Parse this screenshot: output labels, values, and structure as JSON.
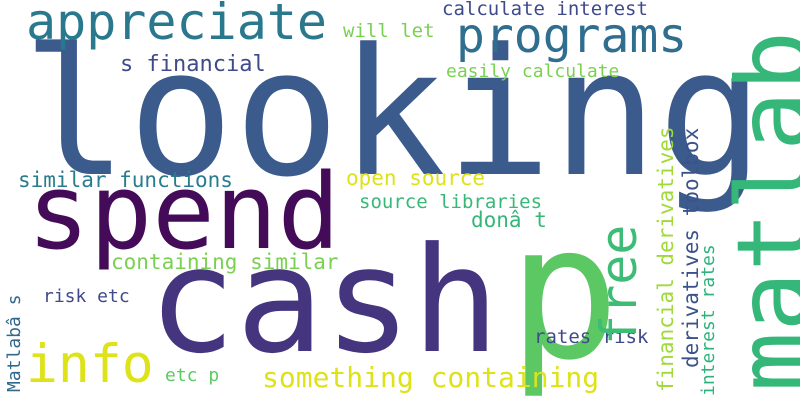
{
  "words": [
    {
      "text": "looking",
      "color": "#3b5b8c"
    },
    {
      "text": "cash",
      "color": "#45357f"
    },
    {
      "text": "p",
      "color": "#5cc863"
    },
    {
      "text": "spend",
      "color": "#440b58"
    },
    {
      "text": "matlab",
      "color": "#35b779"
    },
    {
      "text": "appreciate",
      "color": "#2a788e"
    },
    {
      "text": "programs",
      "color": "#2f6e8e"
    },
    {
      "text": "info",
      "color": "#dde318"
    },
    {
      "text": "free",
      "color": "#3cbc75"
    },
    {
      "text": "something containing",
      "color": "#dde318"
    },
    {
      "text": "calculate interest",
      "color": "#3e4a89"
    },
    {
      "text": "s financial",
      "color": "#3e4a89"
    },
    {
      "text": "similar functions",
      "color": "#287c8e"
    },
    {
      "text": "open source",
      "color": "#dde318"
    },
    {
      "text": "source libraries",
      "color": "#37b878"
    },
    {
      "text": "containing similar",
      "color": "#7ad151"
    },
    {
      "text": "will let",
      "color": "#7ad151"
    },
    {
      "text": "easily calculate",
      "color": "#7ad151"
    },
    {
      "text": "donâ t",
      "color": "#35b779"
    },
    {
      "text": "financial derivatives",
      "color": "#a0da39"
    },
    {
      "text": "derivatives toolbox",
      "color": "#3b528b"
    },
    {
      "text": "interest rates",
      "color": "#2db27d"
    },
    {
      "text": "risk etc",
      "color": "#3e4a89"
    },
    {
      "text": "rates risk",
      "color": "#3e4a89"
    },
    {
      "text": "etc p",
      "color": "#5ec962"
    },
    {
      "text": "Matlabâ s",
      "color": "#31688e"
    }
  ]
}
